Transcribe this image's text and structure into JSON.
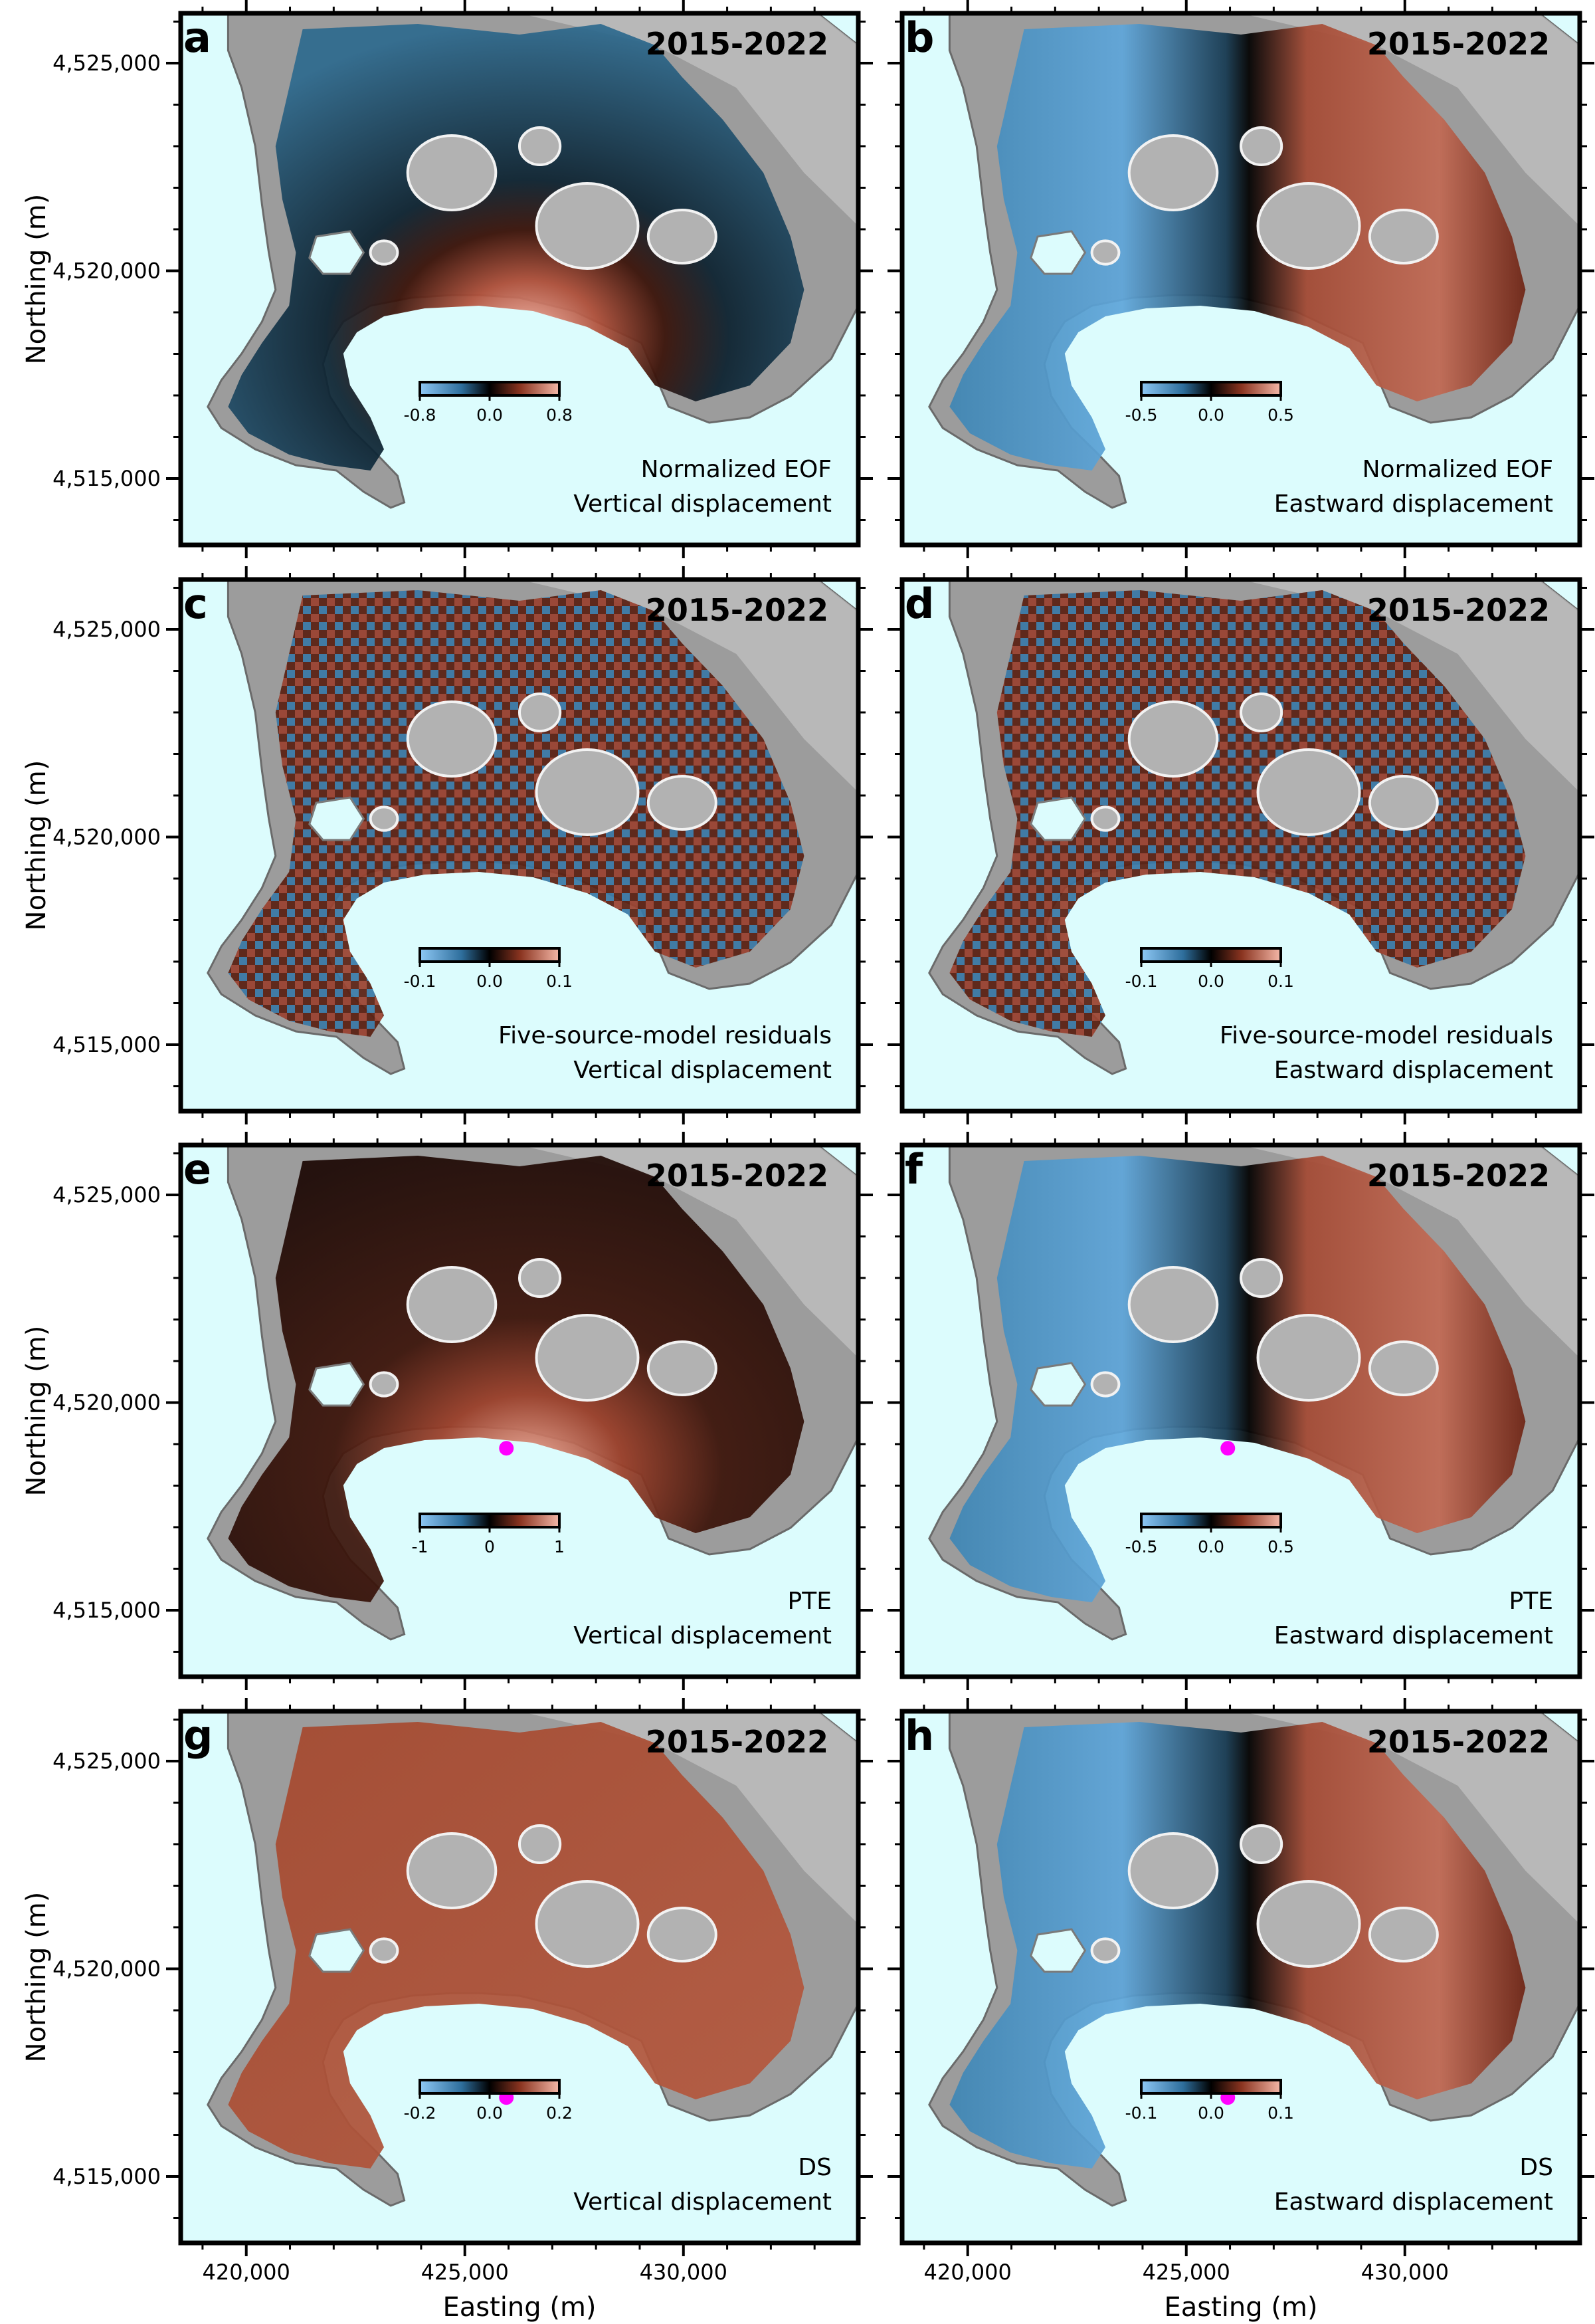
{
  "figure": {
    "x_axis": {
      "title": "Easting (m)",
      "range": [
        418500,
        434000
      ],
      "tick_labels": [
        "420,000",
        "425,000",
        "430,000"
      ],
      "tick_values": [
        420000,
        425000,
        430000
      ]
    },
    "y_axis": {
      "title": "Northing (m)",
      "range": [
        4513400,
        4526200
      ],
      "tick_labels": [
        "4,515,000",
        "4,520,000",
        "4,525,000"
      ],
      "tick_values": [
        4515000,
        4520000,
        4525000
      ]
    },
    "colors": {
      "sea": "#dcfcfd",
      "negative": "#5aa0d8",
      "zero": "#000000",
      "positive": "#f0b0a0",
      "source_marker": "#ff00ff"
    }
  },
  "panels": [
    {
      "id": "a",
      "label": "a",
      "period": "2015-2022",
      "component": "vertical",
      "pattern": "eof",
      "caption_lines": [
        "Normalized EOF",
        "Vertical displacement"
      ],
      "colorbar": {
        "min": "-0.8",
        "mid": "0.0",
        "max": "0.8"
      },
      "marker": null
    },
    {
      "id": "b",
      "label": "b",
      "period": "2015-2022",
      "component": "eastward",
      "pattern": "eof",
      "caption_lines": [
        "Normalized EOF",
        "Eastward displacement"
      ],
      "colorbar": {
        "min": "-0.5",
        "mid": "0.0",
        "max": "0.5"
      },
      "marker": null
    },
    {
      "id": "c",
      "label": "c",
      "period": "2015-2022",
      "component": "vertical",
      "pattern": "residual",
      "caption_lines": [
        "Five-source-model residuals",
        "Vertical displacement"
      ],
      "colorbar": {
        "min": "-0.1",
        "mid": "0.0",
        "max": "0.1"
      },
      "marker": null
    },
    {
      "id": "d",
      "label": "d",
      "period": "2015-2022",
      "component": "eastward",
      "pattern": "residual",
      "caption_lines": [
        "Five-source-model residuals",
        "Eastward displacement"
      ],
      "colorbar": {
        "min": "-0.1",
        "mid": "0.0",
        "max": "0.1"
      },
      "marker": null
    },
    {
      "id": "e",
      "label": "e",
      "period": "2015-2022",
      "component": "vertical",
      "pattern": "model",
      "caption_lines": [
        "PTE",
        "Vertical displacement"
      ],
      "colorbar": {
        "min": "-1",
        "mid": "0",
        "max": "1"
      },
      "marker": {
        "easting": 425950,
        "northing": 4518900
      }
    },
    {
      "id": "f",
      "label": "f",
      "period": "2015-2022",
      "component": "eastward",
      "pattern": "model",
      "caption_lines": [
        "PTE",
        "Eastward displacement"
      ],
      "colorbar": {
        "min": "-0.5",
        "mid": "0.0",
        "max": "0.5"
      },
      "marker": {
        "easting": 425950,
        "northing": 4518900
      }
    },
    {
      "id": "g",
      "label": "g",
      "period": "2015-2022",
      "component": "vertical",
      "pattern": "ds",
      "caption_lines": [
        "DS",
        "Vertical displacement"
      ],
      "colorbar": {
        "min": "-0.2",
        "mid": "0.0",
        "max": "0.2"
      },
      "marker": {
        "easting": 425950,
        "northing": 4516900
      }
    },
    {
      "id": "h",
      "label": "h",
      "period": "2015-2022",
      "component": "eastward",
      "pattern": "ds",
      "caption_lines": [
        "DS",
        "Eastward displacement"
      ],
      "colorbar": {
        "min": "-0.1",
        "mid": "0.0",
        "max": "0.1"
      },
      "marker": {
        "easting": 425950,
        "northing": 4516900
      }
    }
  ]
}
